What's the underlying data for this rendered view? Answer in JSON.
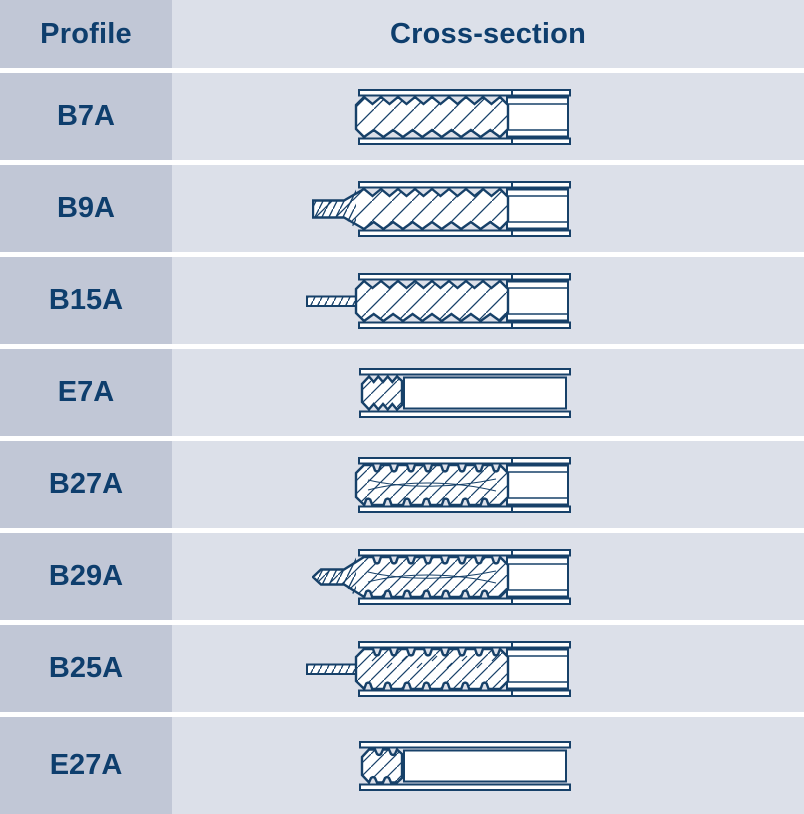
{
  "table": {
    "header": {
      "profile": "Profile",
      "cross_section": "Cross-section"
    },
    "rows": [
      {
        "label": "B7A",
        "diagram": {
          "style": "zig",
          "tab": "none",
          "kind": "full",
          "deco": "none"
        }
      },
      {
        "label": "B9A",
        "diagram": {
          "style": "zig",
          "tab": "bar",
          "kind": "full",
          "deco": "none"
        }
      },
      {
        "label": "B15A",
        "diagram": {
          "style": "zig",
          "tab": "thin",
          "kind": "full",
          "deco": "none"
        }
      },
      {
        "label": "E7A",
        "diagram": {
          "style": "zig",
          "tab": "none",
          "kind": "end",
          "deco": "none"
        }
      },
      {
        "label": "B27A",
        "diagram": {
          "style": "scallop",
          "tab": "none",
          "kind": "full",
          "deco": "lens"
        }
      },
      {
        "label": "B29A",
        "diagram": {
          "style": "scallop",
          "tab": "point",
          "kind": "full",
          "deco": "lens"
        }
      },
      {
        "label": "B25A",
        "diagram": {
          "style": "scallop",
          "tab": "thin",
          "kind": "full",
          "deco": "dash"
        }
      },
      {
        "label": "E27A",
        "diagram": {
          "style": "scallop",
          "tab": "none",
          "kind": "end",
          "deco": "none"
        }
      }
    ],
    "colors": {
      "ink": "#174169",
      "text": "#0e3e6d",
      "col_profile_bg": "#c1c7d6",
      "col_section_bg": "#dce0e9",
      "separator": "#ffffff"
    }
  }
}
